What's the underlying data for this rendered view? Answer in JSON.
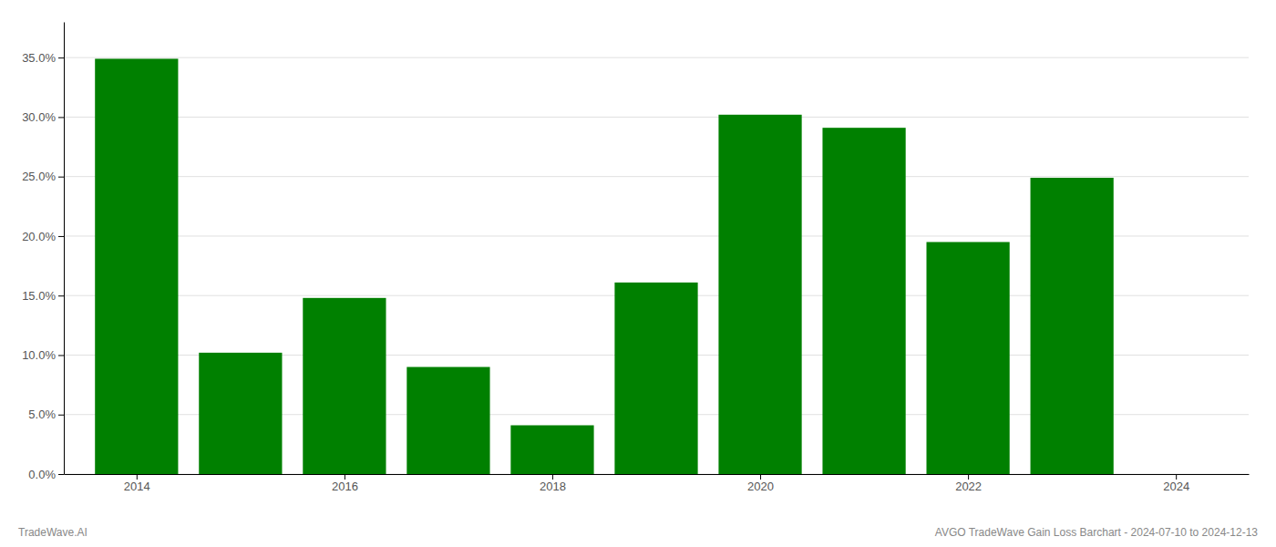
{
  "chart_data": {
    "type": "bar",
    "x": [
      2014,
      2015,
      2016,
      2017,
      2018,
      2019,
      2020,
      2021,
      2022,
      2023
    ],
    "values": [
      0.349,
      0.102,
      0.148,
      0.09,
      0.041,
      0.161,
      0.302,
      0.291,
      0.195,
      0.249
    ],
    "color": "#008000",
    "xlim": [
      2013.3,
      2024.7
    ],
    "xticks": [
      2014,
      2016,
      2018,
      2020,
      2022,
      2024
    ],
    "ylim": [
      0,
      0.38
    ],
    "yticks": [
      {
        "value": 0.0,
        "label": "0.0%"
      },
      {
        "value": 0.05,
        "label": "5.0%"
      },
      {
        "value": 0.1,
        "label": "10.0%"
      },
      {
        "value": 0.15,
        "label": "15.0%"
      },
      {
        "value": 0.2,
        "label": "20.0%"
      },
      {
        "value": 0.25,
        "label": "25.0%"
      },
      {
        "value": 0.3,
        "label": "30.0%"
      },
      {
        "value": 0.35,
        "label": "35.0%"
      }
    ],
    "grid": true,
    "annotations": [
      "TradeWave.AI",
      "AVGO TradeWave Gain Loss Barchart - 2024-07-10 to 2024-12-13"
    ]
  }
}
